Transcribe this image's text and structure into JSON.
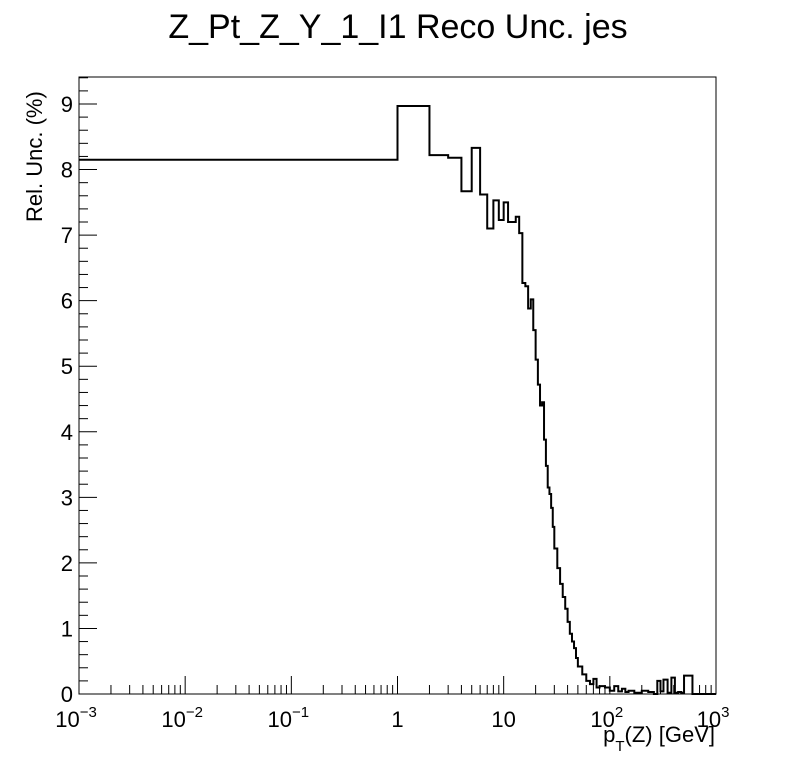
{
  "chart_data": {
    "type": "line",
    "style": "step-histogram",
    "title": "Z_Pt_Z_Y_1_I1 Reco Unc. jes",
    "ylabel": "Rel. Unc. (%)",
    "xlabel": {
      "main": "p",
      "sub": "T",
      "rest": "(Z) [GeV]"
    },
    "xscale": "log",
    "xlim": [
      0.001,
      1000
    ],
    "ylim": [
      0,
      9.4
    ],
    "grid": false,
    "line_color": "#000000",
    "x_tick_labels": [
      {
        "value": 0.001,
        "base": "10",
        "exp": "−3"
      },
      {
        "value": 0.01,
        "base": "10",
        "exp": "−2"
      },
      {
        "value": 0.1,
        "base": "10",
        "exp": "−1"
      },
      {
        "value": 1,
        "base": "1",
        "exp": ""
      },
      {
        "value": 10,
        "base": "10",
        "exp": ""
      },
      {
        "value": 100,
        "base": "10",
        "exp": "2"
      },
      {
        "value": 1000,
        "base": "10",
        "exp": "3"
      }
    ],
    "y_tick_labels": [
      "0",
      "1",
      "2",
      "3",
      "4",
      "5",
      "6",
      "7",
      "8",
      "9"
    ],
    "bin_edges": [
      0.001,
      1.0,
      2.0,
      3.0,
      4.0,
      5.0,
      6.0,
      7.0,
      8.0,
      9.0,
      10.0,
      11.0,
      12.0,
      13.0,
      14.0,
      15.0,
      16.0,
      17.0,
      18.0,
      19.0,
      20.0,
      21.0,
      22.0,
      23.0,
      24.0,
      25.0,
      26.0,
      27.0,
      28.0,
      29.0,
      30.0,
      32.0,
      34.0,
      36.0,
      38.0,
      40.0,
      42.0,
      44.0,
      46.0,
      48.0,
      50.0,
      55.0,
      60.0,
      65.0,
      70.0,
      75.0,
      80.0,
      90.0,
      100.0,
      110.0,
      120.0,
      130.0,
      140.0,
      150.0,
      170.0,
      200.0,
      230.0,
      260.0,
      280.0,
      300.0,
      320.0,
      350.0,
      380.0,
      410.0,
      440.0,
      470.0,
      500.0,
      600.0,
      1000.0
    ],
    "values": [
      8.15,
      8.97,
      8.22,
      8.18,
      7.67,
      8.33,
      7.62,
      7.1,
      7.53,
      7.23,
      7.5,
      7.2,
      7.2,
      7.28,
      7.03,
      6.27,
      6.22,
      5.88,
      6.02,
      5.55,
      5.1,
      4.72,
      4.4,
      4.45,
      3.88,
      3.48,
      3.15,
      3.05,
      2.84,
      2.55,
      2.22,
      1.92,
      1.68,
      1.48,
      1.3,
      1.1,
      0.92,
      0.8,
      0.7,
      0.55,
      0.42,
      0.3,
      0.2,
      0.15,
      0.23,
      0.1,
      0.12,
      0.1,
      0.05,
      0.12,
      0.04,
      0.08,
      0.03,
      0.05,
      0.02,
      0.05,
      0.03,
      0.0,
      0.2,
      0.04,
      0.22,
      0.02,
      0.25,
      0.02,
      0.03,
      0.02,
      0.28,
      0.0
    ]
  }
}
